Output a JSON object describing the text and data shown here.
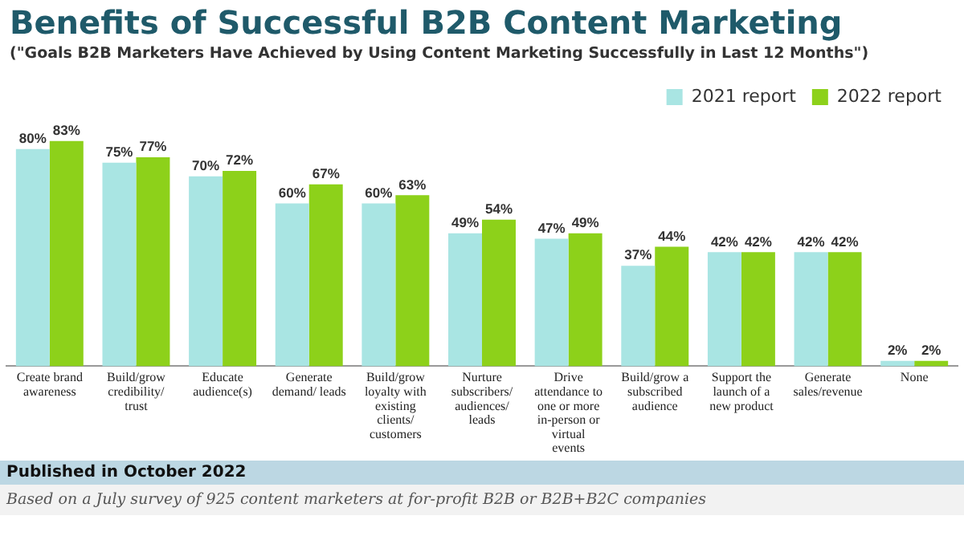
{
  "chart_data": {
    "type": "bar",
    "title": "Benefits of Successful B2B Content Marketing",
    "subtitle": "(\"Goals B2B Marketers Have Achieved by Using Content Marketing Successfully in Last 12 Months\")",
    "categories": [
      "Create brand awareness",
      "Build/grow credibility/ trust",
      "Educate audience(s)",
      "Generate demand/ leads",
      "Build/grow loyalty with existing clients/ customers",
      "Nurture subscribers/ audiences/ leads",
      "Drive attendance to one or more in-person or virtual events",
      "Build/grow a subscribed audience",
      "Support the launch of a new product",
      "Generate sales/revenue",
      "None"
    ],
    "series": [
      {
        "name": "2021 report",
        "color": "#a9e5e3",
        "values": [
          80,
          75,
          70,
          60,
          60,
          49,
          47,
          37,
          42,
          42,
          2
        ],
        "value_labels": [
          "80%",
          "75%",
          "70%",
          "60%",
          "60%",
          "49%",
          "47%",
          "37%",
          "42%",
          "42%",
          "2%"
        ]
      },
      {
        "name": "2022 report",
        "color": "#8dd11a",
        "values": [
          83,
          77,
          72,
          67,
          63,
          54,
          49,
          44,
          42,
          42,
          2
        ],
        "value_labels": [
          "83%",
          "77%",
          "72%",
          "67%",
          "63%",
          "54%",
          "49%",
          "44%",
          "42%",
          "42%",
          "2%"
        ]
      }
    ],
    "legend": "top right",
    "grid": false,
    "annotations": [
      "Published in October 2022",
      "Based on a July survey of 925 content marketers at for-profit B2B or B2B+B2C companies"
    ]
  }
}
